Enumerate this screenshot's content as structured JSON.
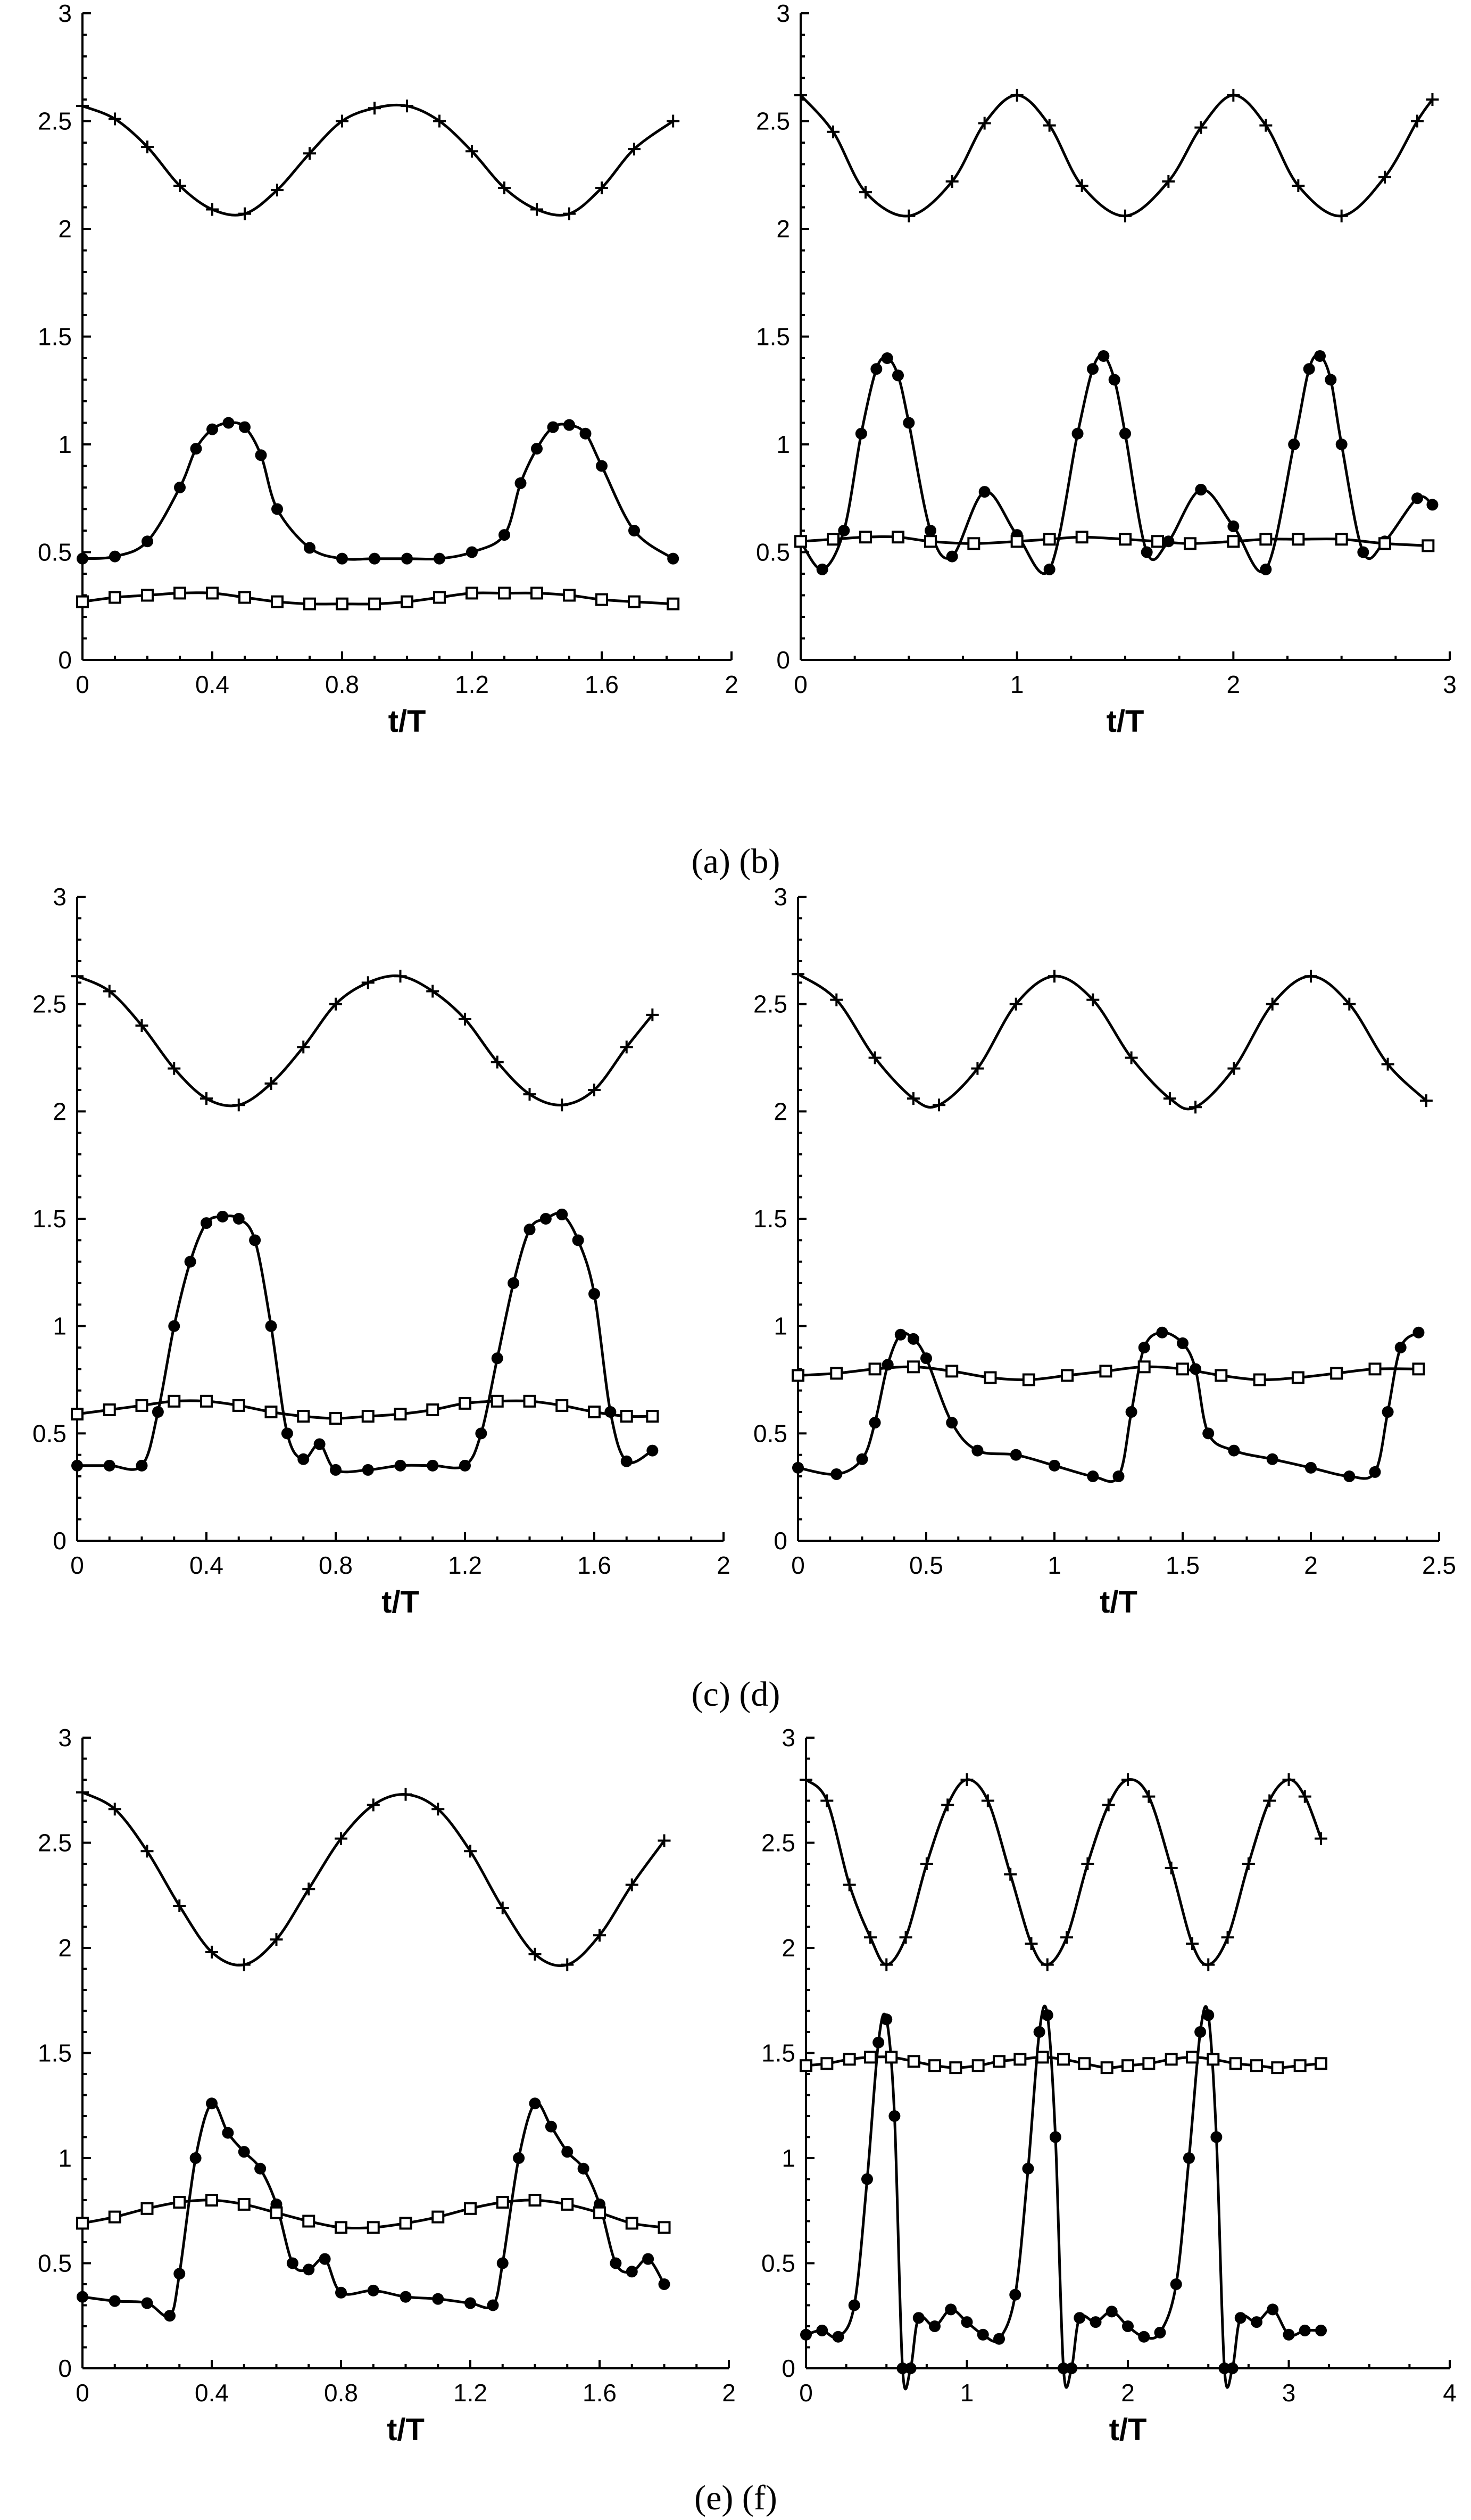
{
  "captions": [
    "(a) (b)",
    "(c) (d)",
    "(e) (f)"
  ],
  "chart_data": [
    {
      "id": "a",
      "type": "line",
      "xlabel": "t/T",
      "ylabel": "",
      "xlim": [
        0,
        2
      ],
      "ylim": [
        0,
        3
      ],
      "xticks": [
        "0",
        "0.4",
        "0.8",
        "1.2",
        "1.6",
        "2"
      ],
      "yticks": [
        "0",
        "0.5",
        "1",
        "1.5",
        "2",
        "2.5",
        "3"
      ],
      "series": [
        {
          "marker": "plus",
          "x": [
            0,
            0.1,
            0.2,
            0.3,
            0.4,
            0.5,
            0.6,
            0.7,
            0.8,
            0.9,
            1.0,
            1.1,
            1.2,
            1.3,
            1.4,
            1.5,
            1.6,
            1.7,
            1.82
          ],
          "y": [
            2.57,
            2.51,
            2.38,
            2.2,
            2.09,
            2.07,
            2.18,
            2.35,
            2.5,
            2.56,
            2.57,
            2.5,
            2.36,
            2.19,
            2.09,
            2.07,
            2.19,
            2.37,
            2.5
          ]
        },
        {
          "marker": "dot",
          "x": [
            0,
            0.1,
            0.2,
            0.3,
            0.35,
            0.4,
            0.45,
            0.5,
            0.55,
            0.6,
            0.7,
            0.8,
            0.9,
            1.0,
            1.1,
            1.2,
            1.3,
            1.35,
            1.4,
            1.45,
            1.5,
            1.55,
            1.6,
            1.7,
            1.82
          ],
          "y": [
            0.47,
            0.48,
            0.55,
            0.8,
            0.98,
            1.07,
            1.1,
            1.08,
            0.95,
            0.7,
            0.52,
            0.47,
            0.47,
            0.47,
            0.47,
            0.5,
            0.58,
            0.82,
            0.98,
            1.08,
            1.09,
            1.05,
            0.9,
            0.6,
            0.47
          ]
        },
        {
          "marker": "square",
          "x": [
            0,
            0.1,
            0.2,
            0.3,
            0.4,
            0.5,
            0.6,
            0.7,
            0.8,
            0.9,
            1.0,
            1.1,
            1.2,
            1.3,
            1.4,
            1.5,
            1.6,
            1.7,
            1.82
          ],
          "y": [
            0.27,
            0.29,
            0.3,
            0.31,
            0.31,
            0.29,
            0.27,
            0.26,
            0.26,
            0.26,
            0.27,
            0.29,
            0.31,
            0.31,
            0.31,
            0.3,
            0.28,
            0.27,
            0.26
          ]
        }
      ]
    },
    {
      "id": "b",
      "type": "line",
      "xlabel": "t/T",
      "ylabel": "",
      "xlim": [
        0,
        3
      ],
      "ylim": [
        0,
        3
      ],
      "xticks": [
        "0",
        "1",
        "2",
        "3"
      ],
      "yticks": [
        "0",
        "0.5",
        "1",
        "1.5",
        "2",
        "2.5",
        "3"
      ],
      "series": [
        {
          "marker": "plus",
          "x": [
            0,
            0.15,
            0.3,
            0.5,
            0.7,
            0.85,
            1.0,
            1.15,
            1.3,
            1.5,
            1.7,
            1.85,
            2.0,
            2.15,
            2.3,
            2.5,
            2.7,
            2.85,
            2.92
          ],
          "y": [
            2.62,
            2.45,
            2.17,
            2.06,
            2.22,
            2.49,
            2.62,
            2.48,
            2.2,
            2.06,
            2.22,
            2.47,
            2.62,
            2.48,
            2.2,
            2.06,
            2.24,
            2.5,
            2.6
          ]
        },
        {
          "marker": "dot",
          "x": [
            0,
            0.1,
            0.2,
            0.28,
            0.35,
            0.4,
            0.45,
            0.5,
            0.6,
            0.7,
            0.85,
            1.0,
            1.15,
            1.28,
            1.35,
            1.4,
            1.45,
            1.5,
            1.6,
            1.7,
            1.85,
            2.0,
            2.15,
            2.28,
            2.35,
            2.4,
            2.45,
            2.5,
            2.6,
            2.7,
            2.85,
            2.92
          ],
          "y": [
            0.55,
            0.42,
            0.6,
            1.05,
            1.35,
            1.4,
            1.32,
            1.1,
            0.6,
            0.48,
            0.78,
            0.58,
            0.42,
            1.05,
            1.35,
            1.41,
            1.3,
            1.05,
            0.5,
            0.55,
            0.79,
            0.62,
            0.42,
            1.0,
            1.35,
            1.41,
            1.3,
            1.0,
            0.5,
            0.55,
            0.75,
            0.72
          ]
        },
        {
          "marker": "square",
          "x": [
            0,
            0.15,
            0.3,
            0.45,
            0.6,
            0.8,
            1.0,
            1.15,
            1.3,
            1.5,
            1.65,
            1.8,
            2.0,
            2.15,
            2.3,
            2.5,
            2.7,
            2.9
          ],
          "y": [
            0.55,
            0.56,
            0.57,
            0.57,
            0.55,
            0.54,
            0.55,
            0.56,
            0.57,
            0.56,
            0.55,
            0.54,
            0.55,
            0.56,
            0.56,
            0.56,
            0.54,
            0.53
          ]
        }
      ]
    },
    {
      "id": "c",
      "type": "line",
      "xlabel": "t/T",
      "ylabel": "",
      "xlim": [
        0,
        2
      ],
      "ylim": [
        0,
        3
      ],
      "xticks": [
        "0",
        "0.4",
        "0.8",
        "1.2",
        "1.6",
        "2"
      ],
      "yticks": [
        "0",
        "0.5",
        "1",
        "1.5",
        "2",
        "2.5",
        "3"
      ],
      "series": [
        {
          "marker": "plus",
          "x": [
            0,
            0.1,
            0.2,
            0.3,
            0.4,
            0.5,
            0.6,
            0.7,
            0.8,
            0.9,
            1.0,
            1.1,
            1.2,
            1.3,
            1.4,
            1.5,
            1.6,
            1.7,
            1.78
          ],
          "y": [
            2.63,
            2.56,
            2.4,
            2.2,
            2.06,
            2.03,
            2.13,
            2.3,
            2.5,
            2.6,
            2.63,
            2.56,
            2.43,
            2.23,
            2.08,
            2.03,
            2.1,
            2.3,
            2.45
          ]
        },
        {
          "marker": "dot",
          "x": [
            0,
            0.1,
            0.2,
            0.25,
            0.3,
            0.35,
            0.4,
            0.45,
            0.5,
            0.55,
            0.6,
            0.65,
            0.7,
            0.75,
            0.8,
            0.9,
            1.0,
            1.1,
            1.2,
            1.25,
            1.3,
            1.35,
            1.4,
            1.45,
            1.5,
            1.55,
            1.6,
            1.65,
            1.7,
            1.78
          ],
          "y": [
            0.35,
            0.35,
            0.35,
            0.6,
            1.0,
            1.3,
            1.48,
            1.51,
            1.5,
            1.4,
            1.0,
            0.5,
            0.38,
            0.45,
            0.33,
            0.33,
            0.35,
            0.35,
            0.35,
            0.5,
            0.85,
            1.2,
            1.45,
            1.5,
            1.52,
            1.4,
            1.15,
            0.6,
            0.37,
            0.42
          ]
        },
        {
          "marker": "square",
          "x": [
            0,
            0.1,
            0.2,
            0.3,
            0.4,
            0.5,
            0.6,
            0.7,
            0.8,
            0.9,
            1.0,
            1.1,
            1.2,
            1.3,
            1.4,
            1.5,
            1.6,
            1.7,
            1.78
          ],
          "y": [
            0.59,
            0.61,
            0.63,
            0.65,
            0.65,
            0.63,
            0.6,
            0.58,
            0.57,
            0.58,
            0.59,
            0.61,
            0.64,
            0.65,
            0.65,
            0.63,
            0.6,
            0.58,
            0.58
          ]
        }
      ]
    },
    {
      "id": "d",
      "type": "line",
      "xlabel": "t/T",
      "ylabel": "",
      "xlim": [
        0,
        2.5
      ],
      "ylim": [
        0,
        3
      ],
      "xticks": [
        "0",
        "0.5",
        "1",
        "1.5",
        "2",
        "2.5"
      ],
      "yticks": [
        "0",
        "0.5",
        "1",
        "1.5",
        "2",
        "2.5",
        "3"
      ],
      "series": [
        {
          "marker": "plus",
          "x": [
            0,
            0.15,
            0.3,
            0.45,
            0.55,
            0.7,
            0.85,
            1.0,
            1.15,
            1.3,
            1.45,
            1.55,
            1.7,
            1.85,
            2.0,
            2.15,
            2.3,
            2.45
          ],
          "y": [
            2.64,
            2.52,
            2.25,
            2.06,
            2.03,
            2.2,
            2.5,
            2.63,
            2.52,
            2.25,
            2.06,
            2.02,
            2.2,
            2.5,
            2.63,
            2.5,
            2.22,
            2.05
          ]
        },
        {
          "marker": "dot",
          "x": [
            0,
            0.15,
            0.25,
            0.3,
            0.35,
            0.4,
            0.45,
            0.5,
            0.6,
            0.7,
            0.85,
            1.0,
            1.15,
            1.25,
            1.3,
            1.35,
            1.42,
            1.5,
            1.55,
            1.6,
            1.7,
            1.85,
            2.0,
            2.15,
            2.25,
            2.3,
            2.35,
            2.42
          ],
          "y": [
            0.34,
            0.31,
            0.38,
            0.55,
            0.82,
            0.96,
            0.94,
            0.85,
            0.55,
            0.42,
            0.4,
            0.35,
            0.3,
            0.3,
            0.6,
            0.9,
            0.97,
            0.92,
            0.8,
            0.5,
            0.42,
            0.38,
            0.34,
            0.3,
            0.32,
            0.6,
            0.9,
            0.97
          ]
        },
        {
          "marker": "square",
          "x": [
            0,
            0.15,
            0.3,
            0.45,
            0.6,
            0.75,
            0.9,
            1.05,
            1.2,
            1.35,
            1.5,
            1.65,
            1.8,
            1.95,
            2.1,
            2.25,
            2.42
          ],
          "y": [
            0.77,
            0.78,
            0.8,
            0.81,
            0.79,
            0.76,
            0.75,
            0.77,
            0.79,
            0.81,
            0.8,
            0.77,
            0.75,
            0.76,
            0.78,
            0.8,
            0.8
          ]
        }
      ]
    },
    {
      "id": "e",
      "type": "line",
      "xlabel": "t/T",
      "ylabel": "",
      "xlim": [
        0,
        2
      ],
      "ylim": [
        0,
        3
      ],
      "xticks": [
        "0",
        "0.4",
        "0.8",
        "1.2",
        "1.6",
        "2"
      ],
      "yticks": [
        "0",
        "0.5",
        "1",
        "1.5",
        "2",
        "2.5",
        "3"
      ],
      "series": [
        {
          "marker": "plus",
          "x": [
            0,
            0.1,
            0.2,
            0.3,
            0.4,
            0.5,
            0.6,
            0.7,
            0.8,
            0.9,
            1.0,
            1.1,
            1.2,
            1.3,
            1.4,
            1.5,
            1.6,
            1.7,
            1.8
          ],
          "y": [
            2.74,
            2.66,
            2.46,
            2.2,
            1.98,
            1.92,
            2.04,
            2.28,
            2.52,
            2.68,
            2.73,
            2.66,
            2.46,
            2.19,
            1.97,
            1.92,
            2.06,
            2.3,
            2.51
          ]
        },
        {
          "marker": "dot",
          "x": [
            0,
            0.1,
            0.2,
            0.27,
            0.3,
            0.35,
            0.4,
            0.45,
            0.5,
            0.55,
            0.6,
            0.65,
            0.7,
            0.75,
            0.8,
            0.9,
            1.0,
            1.1,
            1.2,
            1.27,
            1.3,
            1.35,
            1.4,
            1.45,
            1.5,
            1.55,
            1.6,
            1.65,
            1.7,
            1.75,
            1.8
          ],
          "y": [
            0.34,
            0.32,
            0.31,
            0.25,
            0.45,
            1.0,
            1.26,
            1.12,
            1.03,
            0.95,
            0.78,
            0.5,
            0.47,
            0.52,
            0.36,
            0.37,
            0.34,
            0.33,
            0.31,
            0.3,
            0.5,
            1.0,
            1.26,
            1.15,
            1.03,
            0.95,
            0.78,
            0.5,
            0.46,
            0.52,
            0.4
          ]
        },
        {
          "marker": "square",
          "x": [
            0,
            0.1,
            0.2,
            0.3,
            0.4,
            0.5,
            0.6,
            0.7,
            0.8,
            0.9,
            1.0,
            1.1,
            1.2,
            1.3,
            1.4,
            1.5,
            1.6,
            1.7,
            1.8
          ],
          "y": [
            0.69,
            0.72,
            0.76,
            0.79,
            0.8,
            0.78,
            0.74,
            0.7,
            0.67,
            0.67,
            0.69,
            0.72,
            0.76,
            0.79,
            0.8,
            0.78,
            0.74,
            0.69,
            0.67
          ]
        }
      ]
    },
    {
      "id": "f",
      "type": "line",
      "xlabel": "t/T",
      "ylabel": "",
      "xlim": [
        0,
        4
      ],
      "ylim": [
        0,
        3
      ],
      "xticks": [
        "0",
        "1",
        "2",
        "3",
        "4"
      ],
      "yticks": [
        "0",
        "0.5",
        "1",
        "1.5",
        "2",
        "2.5",
        "3"
      ],
      "series": [
        {
          "marker": "plus",
          "x": [
            0,
            0.13,
            0.27,
            0.4,
            0.5,
            0.62,
            0.75,
            0.88,
            1.0,
            1.13,
            1.27,
            1.4,
            1.5,
            1.62,
            1.75,
            1.88,
            2.0,
            2.13,
            2.27,
            2.4,
            2.5,
            2.62,
            2.75,
            2.88,
            3.0,
            3.1,
            3.2
          ],
          "y": [
            2.8,
            2.7,
            2.3,
            2.05,
            1.92,
            2.05,
            2.4,
            2.68,
            2.8,
            2.7,
            2.35,
            2.02,
            1.92,
            2.05,
            2.4,
            2.68,
            2.8,
            2.72,
            2.38,
            2.02,
            1.92,
            2.05,
            2.4,
            2.7,
            2.8,
            2.72,
            2.52
          ]
        },
        {
          "marker": "dot",
          "x": [
            0,
            0.1,
            0.2,
            0.3,
            0.38,
            0.45,
            0.5,
            0.55,
            0.6,
            0.65,
            0.7,
            0.8,
            0.9,
            1.0,
            1.1,
            1.2,
            1.3,
            1.38,
            1.45,
            1.5,
            1.55,
            1.6,
            1.65,
            1.7,
            1.8,
            1.9,
            2.0,
            2.1,
            2.2,
            2.3,
            2.38,
            2.45,
            2.5,
            2.55,
            2.6,
            2.65,
            2.7,
            2.8,
            2.9,
            3.0,
            3.1,
            3.2
          ],
          "y": [
            0.16,
            0.18,
            0.15,
            0.3,
            0.9,
            1.55,
            1.66,
            1.2,
            0.0,
            0.0,
            0.24,
            0.2,
            0.28,
            0.22,
            0.16,
            0.14,
            0.35,
            0.95,
            1.6,
            1.68,
            1.1,
            0.0,
            0.0,
            0.24,
            0.22,
            0.27,
            0.2,
            0.15,
            0.17,
            0.4,
            1.0,
            1.6,
            1.68,
            1.1,
            0.0,
            0.0,
            0.24,
            0.22,
            0.28,
            0.16,
            0.18,
            0.18
          ]
        },
        {
          "marker": "square",
          "x": [
            0,
            0.13,
            0.27,
            0.4,
            0.53,
            0.67,
            0.8,
            0.93,
            1.07,
            1.2,
            1.33,
            1.47,
            1.6,
            1.73,
            1.87,
            2.0,
            2.13,
            2.27,
            2.4,
            2.53,
            2.67,
            2.8,
            2.93,
            3.07,
            3.2
          ],
          "y": [
            1.44,
            1.45,
            1.47,
            1.48,
            1.48,
            1.46,
            1.44,
            1.43,
            1.44,
            1.46,
            1.47,
            1.48,
            1.47,
            1.45,
            1.43,
            1.44,
            1.45,
            1.47,
            1.48,
            1.47,
            1.45,
            1.44,
            1.43,
            1.44,
            1.45
          ]
        }
      ]
    }
  ]
}
